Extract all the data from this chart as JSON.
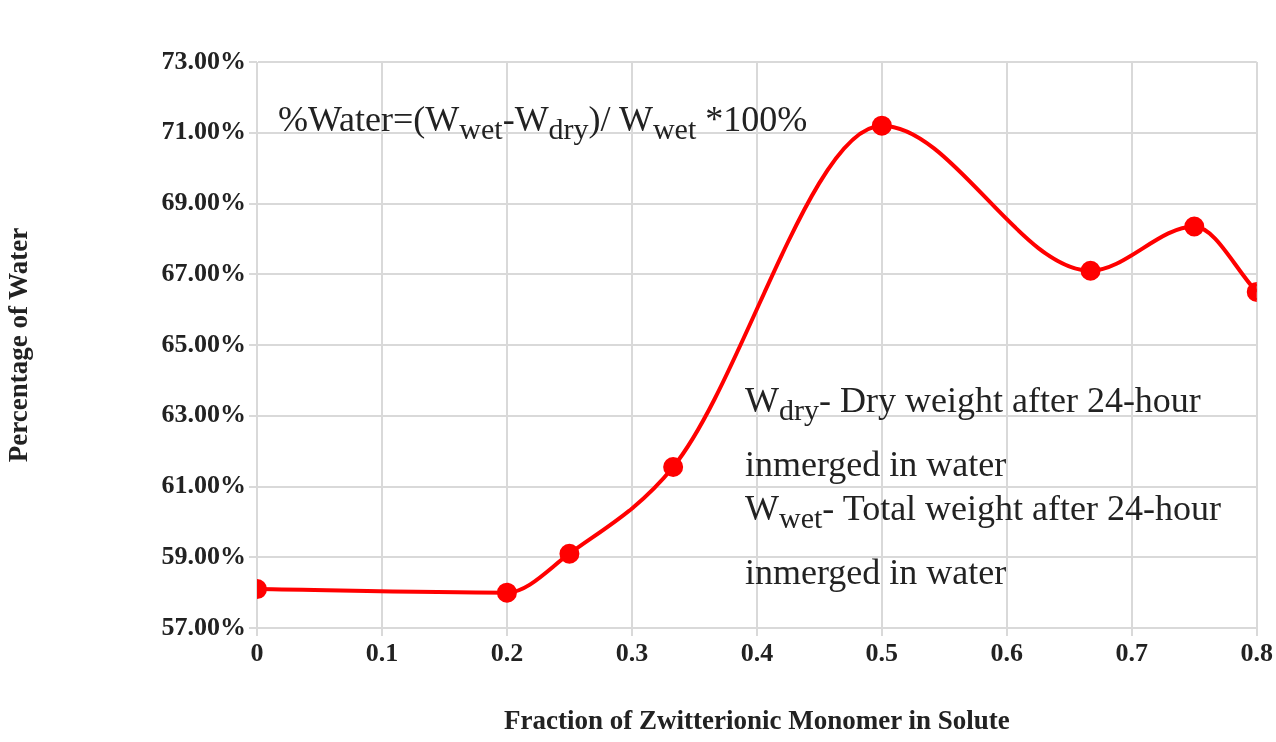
{
  "chart_data": {
    "type": "line",
    "xlabel": "Fraction of Zwitterionic Monomer in Solute",
    "ylabel": "Percentage of Water",
    "x": [
      0,
      0.2,
      0.25,
      0.333,
      0.5,
      0.667,
      0.75,
      0.8
    ],
    "series": [
      {
        "color": "#ff0000",
        "values": [
          58.1,
          58.0,
          59.1,
          61.55,
          71.2,
          67.1,
          68.35,
          66.5
        ]
      }
    ],
    "xlim": [
      0,
      0.8
    ],
    "xticks": [
      0,
      0.1,
      0.2,
      0.3,
      0.4,
      0.5,
      0.6,
      0.7,
      0.8
    ],
    "ylim": [
      57,
      73
    ],
    "yticks": [
      {
        "value": 57,
        "label": "57.00%"
      },
      {
        "value": 59,
        "label": "59.00%"
      },
      {
        "value": 61,
        "label": "61.00%"
      },
      {
        "value": 63,
        "label": "63.00%"
      },
      {
        "value": 65,
        "label": "65.00%"
      },
      {
        "value": 67,
        "label": "67.00%"
      },
      {
        "value": 69,
        "label": "69.00%"
      },
      {
        "value": 71,
        "label": "71.00%"
      },
      {
        "value": 73,
        "label": "73.00%"
      }
    ],
    "grid": true,
    "marker": "circle",
    "line_style": "solid",
    "legend": false,
    "annotations": [
      "%Water=(W$_{wet}$-W$_{dry}$)/ W$_{wet}$ *100%",
      "W$_{dry}$- Dry weight after 24-hour inmerged in water",
      "W$_{wet}$- Total weight after 24-hour inmerged in water"
    ]
  }
}
